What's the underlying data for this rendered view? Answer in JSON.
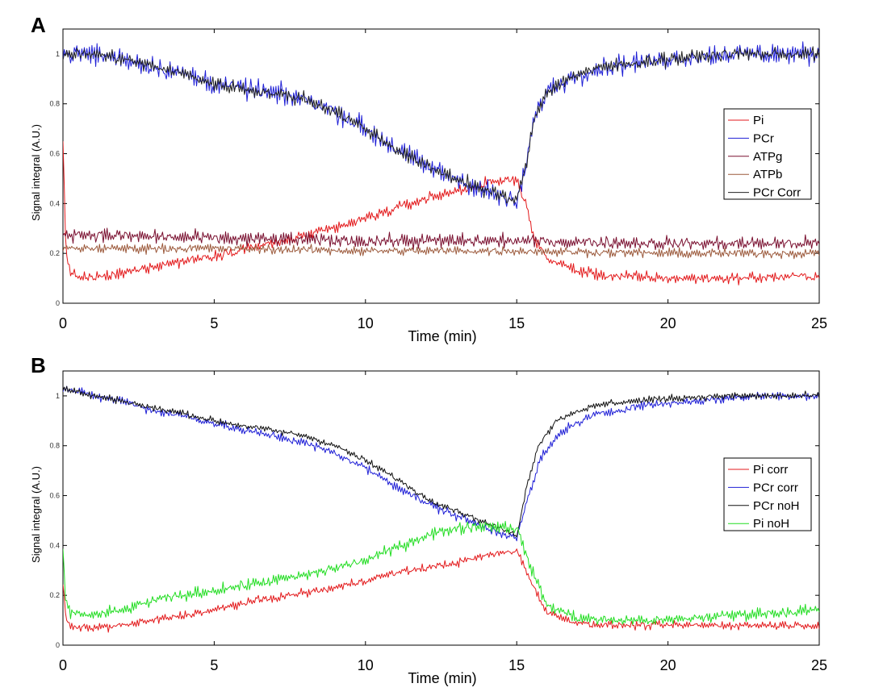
{
  "chart_data": [
    {
      "type": "line",
      "panel_label": "A",
      "xlabel": "Time (min)",
      "ylabel": "Signal integral (A.U.)",
      "xlim": [
        0,
        25
      ],
      "ylim": [
        0,
        1.1
      ],
      "xticks": [
        0,
        5,
        10,
        15,
        20,
        25
      ],
      "yticks": [
        0,
        0.2,
        0.4,
        0.6,
        0.8,
        1
      ],
      "ytick_labels": [
        "0",
        "0.2",
        "0.4",
        "0.6",
        "0.8",
        "1"
      ],
      "legend_position": "right",
      "series": [
        {
          "name": "Pi",
          "color": "#e31a1c",
          "noise": 0.025,
          "x": [
            0,
            0.1,
            0.3,
            1,
            2,
            3,
            4,
            5,
            6,
            7,
            8,
            9,
            10,
            11,
            12,
            13,
            14,
            15,
            15.3,
            15.6,
            16,
            17,
            18,
            20,
            22,
            25
          ],
          "y": [
            0.65,
            0.2,
            0.11,
            0.1,
            0.12,
            0.15,
            0.17,
            0.19,
            0.22,
            0.24,
            0.27,
            0.3,
            0.34,
            0.38,
            0.42,
            0.45,
            0.48,
            0.5,
            0.4,
            0.25,
            0.18,
            0.13,
            0.11,
            0.1,
            0.1,
            0.11
          ]
        },
        {
          "name": "PCr",
          "color": "#1f1fd6",
          "noise": 0.045,
          "x": [
            0,
            1,
            2,
            3,
            4,
            5,
            6,
            7,
            8,
            9,
            10,
            11,
            12,
            13,
            14,
            15,
            15.3,
            15.6,
            16,
            17,
            18,
            20,
            22,
            25
          ],
          "y": [
            1.0,
            1.0,
            0.98,
            0.95,
            0.92,
            0.88,
            0.86,
            0.84,
            0.82,
            0.77,
            0.7,
            0.62,
            0.55,
            0.5,
            0.45,
            0.4,
            0.55,
            0.75,
            0.85,
            0.92,
            0.95,
            0.98,
            1.0,
            1.0
          ]
        },
        {
          "name": "ATPg",
          "color": "#7a1030",
          "noise": 0.03,
          "x": [
            0,
            2,
            5,
            10,
            15,
            20,
            25
          ],
          "y": [
            0.28,
            0.27,
            0.26,
            0.25,
            0.25,
            0.24,
            0.24
          ]
        },
        {
          "name": "ATPb",
          "color": "#9c5a3c",
          "noise": 0.02,
          "x": [
            0,
            2,
            5,
            10,
            15,
            20,
            25
          ],
          "y": [
            0.22,
            0.22,
            0.22,
            0.21,
            0.21,
            0.2,
            0.2
          ]
        },
        {
          "name": "PCr Corr",
          "color": "#222222",
          "noise": 0.03,
          "x": [
            0,
            1,
            2,
            3,
            4,
            5,
            6,
            7,
            8,
            9,
            10,
            11,
            12,
            13,
            14,
            15,
            15.3,
            15.6,
            16,
            17,
            18,
            20,
            22,
            25
          ],
          "y": [
            1.0,
            1.0,
            0.98,
            0.95,
            0.92,
            0.88,
            0.86,
            0.84,
            0.82,
            0.77,
            0.7,
            0.62,
            0.55,
            0.5,
            0.45,
            0.41,
            0.55,
            0.75,
            0.85,
            0.92,
            0.95,
            0.98,
            1.0,
            1.0
          ]
        }
      ]
    },
    {
      "type": "line",
      "panel_label": "B",
      "xlabel": "Time (min)",
      "ylabel": "Signal integral (A.U.)",
      "xlim": [
        0,
        25
      ],
      "ylim": [
        0,
        1.1
      ],
      "xticks": [
        0,
        5,
        10,
        15,
        20,
        25
      ],
      "yticks": [
        0,
        0.2,
        0.4,
        0.6,
        0.8,
        1
      ],
      "ytick_labels": [
        "0",
        "0.2",
        "0.4",
        "0.6",
        "0.8",
        "1"
      ],
      "legend_position": "right",
      "series": [
        {
          "name": "Pi corr",
          "color": "#e31a1c",
          "noise": 0.018,
          "x": [
            0,
            0.1,
            0.3,
            1,
            2,
            3,
            4,
            5,
            6,
            7,
            8,
            9,
            10,
            11,
            12,
            13,
            14,
            15,
            15.5,
            16,
            17,
            18,
            20,
            22,
            25
          ],
          "y": [
            0.25,
            0.1,
            0.07,
            0.07,
            0.08,
            0.1,
            0.12,
            0.14,
            0.17,
            0.19,
            0.21,
            0.23,
            0.26,
            0.29,
            0.31,
            0.33,
            0.36,
            0.38,
            0.25,
            0.13,
            0.09,
            0.08,
            0.08,
            0.08,
            0.08
          ]
        },
        {
          "name": "PCr corr",
          "color": "#1f1fd6",
          "noise": 0.02,
          "x": [
            0,
            1,
            2,
            3,
            4,
            5,
            6,
            7,
            8,
            9,
            10,
            11,
            12,
            13,
            14,
            15,
            15.4,
            15.8,
            16.5,
            17.5,
            19,
            21,
            23,
            25
          ],
          "y": [
            1.03,
            1.0,
            0.98,
            0.94,
            0.92,
            0.89,
            0.86,
            0.84,
            0.81,
            0.77,
            0.71,
            0.64,
            0.57,
            0.52,
            0.47,
            0.43,
            0.6,
            0.75,
            0.86,
            0.92,
            0.96,
            0.98,
            1.0,
            1.0
          ]
        },
        {
          "name": "PCr noH",
          "color": "#111111",
          "noise": 0.015,
          "x": [
            0,
            1,
            2,
            3,
            4,
            5,
            6,
            7,
            8,
            9,
            10,
            11,
            12,
            13,
            14,
            15,
            15.3,
            15.7,
            16.3,
            17,
            18,
            20,
            22,
            25
          ],
          "y": [
            1.03,
            1.0,
            0.98,
            0.95,
            0.93,
            0.9,
            0.88,
            0.86,
            0.84,
            0.8,
            0.74,
            0.67,
            0.59,
            0.54,
            0.49,
            0.44,
            0.62,
            0.8,
            0.9,
            0.94,
            0.97,
            0.99,
            1.0,
            1.0
          ]
        },
        {
          "name": "Pi noH",
          "color": "#22dd22",
          "noise": 0.025,
          "x": [
            0,
            0.1,
            0.3,
            1,
            2,
            3,
            4,
            5,
            6,
            7,
            8,
            9,
            10,
            11,
            12,
            13,
            14,
            15,
            15.5,
            16,
            17,
            18,
            20,
            22,
            25
          ],
          "y": [
            0.38,
            0.16,
            0.13,
            0.12,
            0.14,
            0.18,
            0.2,
            0.22,
            0.24,
            0.26,
            0.28,
            0.31,
            0.34,
            0.39,
            0.44,
            0.47,
            0.48,
            0.47,
            0.3,
            0.16,
            0.11,
            0.1,
            0.1,
            0.12,
            0.14
          ]
        }
      ]
    }
  ]
}
